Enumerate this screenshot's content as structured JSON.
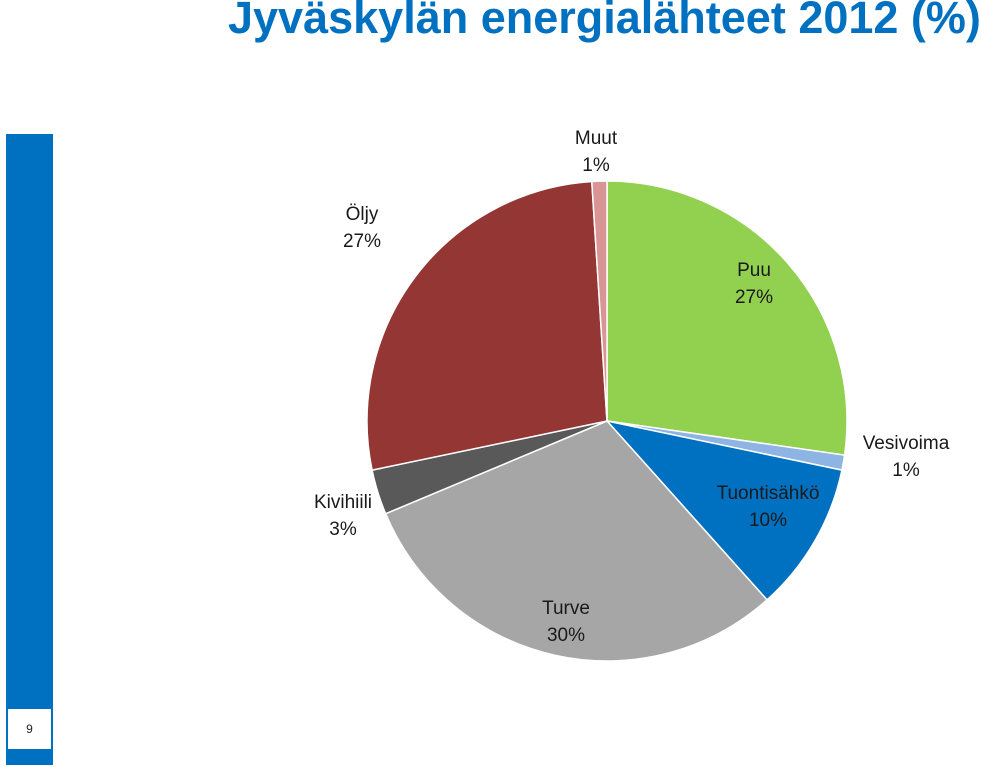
{
  "page_title": "Jyväskylän energialähteet 2012 (%)",
  "page_number": "9",
  "colors": {
    "title": "#0070C0",
    "side_bar": "#0070C0"
  },
  "chart_data": {
    "type": "pie",
    "title": "",
    "unit": "%",
    "start_angle_deg": 0,
    "direction": "clockwise",
    "slices": [
      {
        "name": "Puu",
        "value": 27,
        "label": "27%",
        "color": "#92D050"
      },
      {
        "name": "Vesivoima",
        "value": 1,
        "label": "1%",
        "color": "#8DB4E2"
      },
      {
        "name": "Tuontisähkö",
        "value": 10,
        "label": "10%",
        "color": "#0070C0"
      },
      {
        "name": "Turve",
        "value": 30,
        "label": "30%",
        "color": "#A6A6A6"
      },
      {
        "name": "Kivihiili",
        "value": 3,
        "label": "3%",
        "color": "#595959"
      },
      {
        "name": "Öljy",
        "value": 27,
        "label": "27%",
        "color": "#943634"
      },
      {
        "name": "Muut",
        "value": 1,
        "label": "1%",
        "color": "#D99594"
      }
    ]
  }
}
